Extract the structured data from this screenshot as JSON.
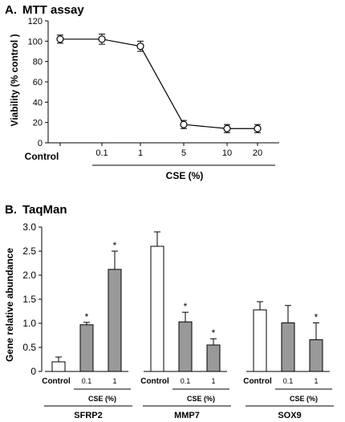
{
  "chart_data": [
    {
      "type": "line",
      "panel_label": "A.",
      "title": "MTT assay",
      "ylabel": "Viability (% control )",
      "xlabel": "CSE (%)",
      "ylim": [
        0,
        120
      ],
      "yticks": [
        "0",
        "20",
        "40",
        "60",
        "80",
        "100",
        "120"
      ],
      "x": [
        "Control",
        "0.1",
        "1",
        "5",
        "10",
        "20"
      ],
      "series": [
        {
          "values": [
            102,
            102,
            95,
            18,
            14,
            14
          ],
          "errors": [
            4,
            5,
            5,
            4,
            4,
            4
          ]
        }
      ],
      "grid": false
    },
    {
      "type": "bar",
      "panel_label": "B.",
      "title": "TaqMan",
      "ylabel": "Gene relative abundance",
      "ylim": [
        0,
        3.0
      ],
      "yticks": [
        "0",
        "0.5",
        "1.0",
        "1.5",
        "2.0",
        "2.5",
        "3.0"
      ],
      "sublabel": "CSE (%)",
      "groups": [
        {
          "name": "SFRP2",
          "categories": [
            "Control",
            "0.1",
            "1"
          ],
          "values": [
            0.2,
            0.97,
            2.12
          ],
          "errors": [
            0.1,
            0.05,
            0.38
          ],
          "significant": [
            false,
            true,
            true
          ]
        },
        {
          "name": "MMP7",
          "categories": [
            "Control",
            "0.1",
            "1"
          ],
          "values": [
            2.6,
            1.03,
            0.55
          ],
          "errors": [
            0.3,
            0.2,
            0.13
          ],
          "significant": [
            false,
            true,
            true
          ]
        },
        {
          "name": "SOX9",
          "categories": [
            "Control",
            "0.1",
            "1"
          ],
          "values": [
            1.28,
            1.01,
            0.66
          ],
          "errors": [
            0.17,
            0.36,
            0.35
          ],
          "significant": [
            false,
            false,
            true
          ]
        }
      ],
      "significance_marker": "*",
      "colors": {
        "control": "#ffffff",
        "treated": "#999999",
        "stroke": "#000000"
      },
      "grid": false
    }
  ]
}
